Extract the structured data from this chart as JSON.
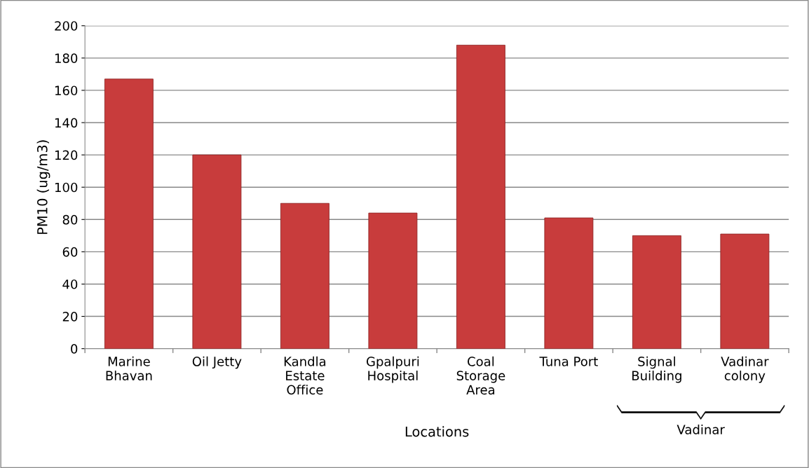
{
  "chart_data": {
    "type": "bar",
    "xlabel": "Locations",
    "ylabel": "PM10 (ug/m3)",
    "categories": [
      "Marine\nBhavan",
      "Oil Jetty",
      "Kandla\nEstate\nOffice",
      "Gpalpuri\nHospital",
      "Coal\nStorage\nArea",
      "Tuna Port",
      "Signal\nBuilding",
      "Vadinar\ncolony"
    ],
    "values": [
      167,
      120,
      90,
      84,
      188,
      81,
      70,
      71
    ],
    "color": "#c83c3c",
    "ylim": [
      0,
      200
    ],
    "yticks": [
      0,
      20,
      40,
      60,
      80,
      100,
      120,
      140,
      160,
      180,
      200
    ],
    "grid": "y",
    "legend": false,
    "annotations": [
      "Vadinar"
    ]
  }
}
